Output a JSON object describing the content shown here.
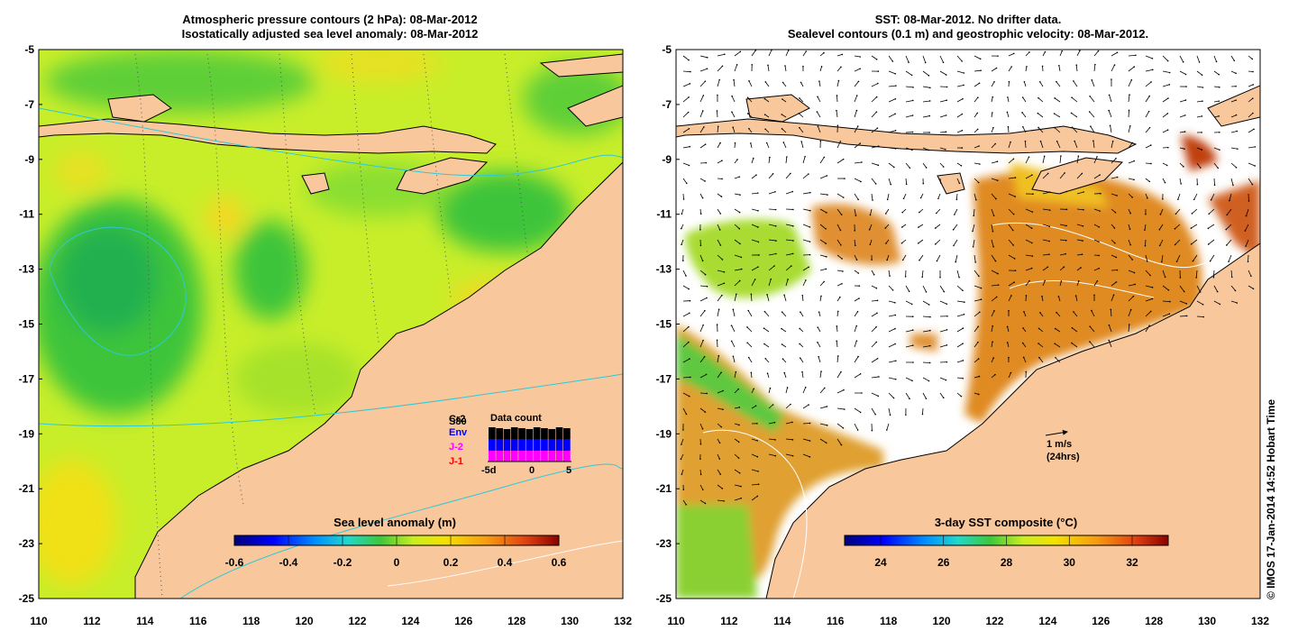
{
  "left_panel": {
    "title_line1": "Atmospheric pressure contours (2 hPa): 08-Mar-2012",
    "title_line2": "Isostatically adjusted sea level anomaly: 08-Mar-2012",
    "colorbar": {
      "label": "Sea level anomaly (m)",
      "ticks": [
        "-0.6",
        "-0.4",
        "-0.2",
        "0",
        "0.2",
        "0.4",
        "0.6"
      ]
    },
    "data_count": {
      "title": "Data count",
      "legend": [
        {
          "label": "Cr2",
          "color": "#000000"
        },
        {
          "label": "S80",
          "color": "#000000"
        },
        {
          "label": "Env",
          "color": "#0000ff"
        },
        {
          "label": "J-2",
          "color": "#ff00ff"
        },
        {
          "label": "J-1",
          "color": "#ff0000"
        }
      ],
      "xticks": [
        "-5d",
        "0",
        "5"
      ]
    }
  },
  "right_panel": {
    "title_line1": "SST: 08-Mar-2012. No drifter data.",
    "title_line2": "Sealevel contours (0.1 m) and geostrophic velocity: 08-Mar-2012.",
    "colorbar": {
      "label": "3-day SST composite (°C)",
      "ticks": [
        "24",
        "26",
        "28",
        "30",
        "32"
      ]
    },
    "scale_arrow": {
      "line1": "1 m/s",
      "line2": "(24hrs)"
    }
  },
  "axes": {
    "lon_ticks": [
      "110",
      "112",
      "114",
      "116",
      "118",
      "120",
      "122",
      "124",
      "126",
      "128",
      "130",
      "132"
    ],
    "lat_ticks": [
      "-5",
      "-7",
      "-9",
      "-11",
      "-13",
      "-15",
      "-17",
      "-19",
      "-21",
      "-23",
      "-25"
    ]
  },
  "credit": "© IMOS 17-Jan-2014 14:52 Hobart Time",
  "colors": {
    "land": "#f9c79c",
    "ocean_slight_positive": "#c8ee2a",
    "ocean_negative": "#3ec43a",
    "sst_warm": "#e08a22",
    "no_data": "#ffffff"
  }
}
